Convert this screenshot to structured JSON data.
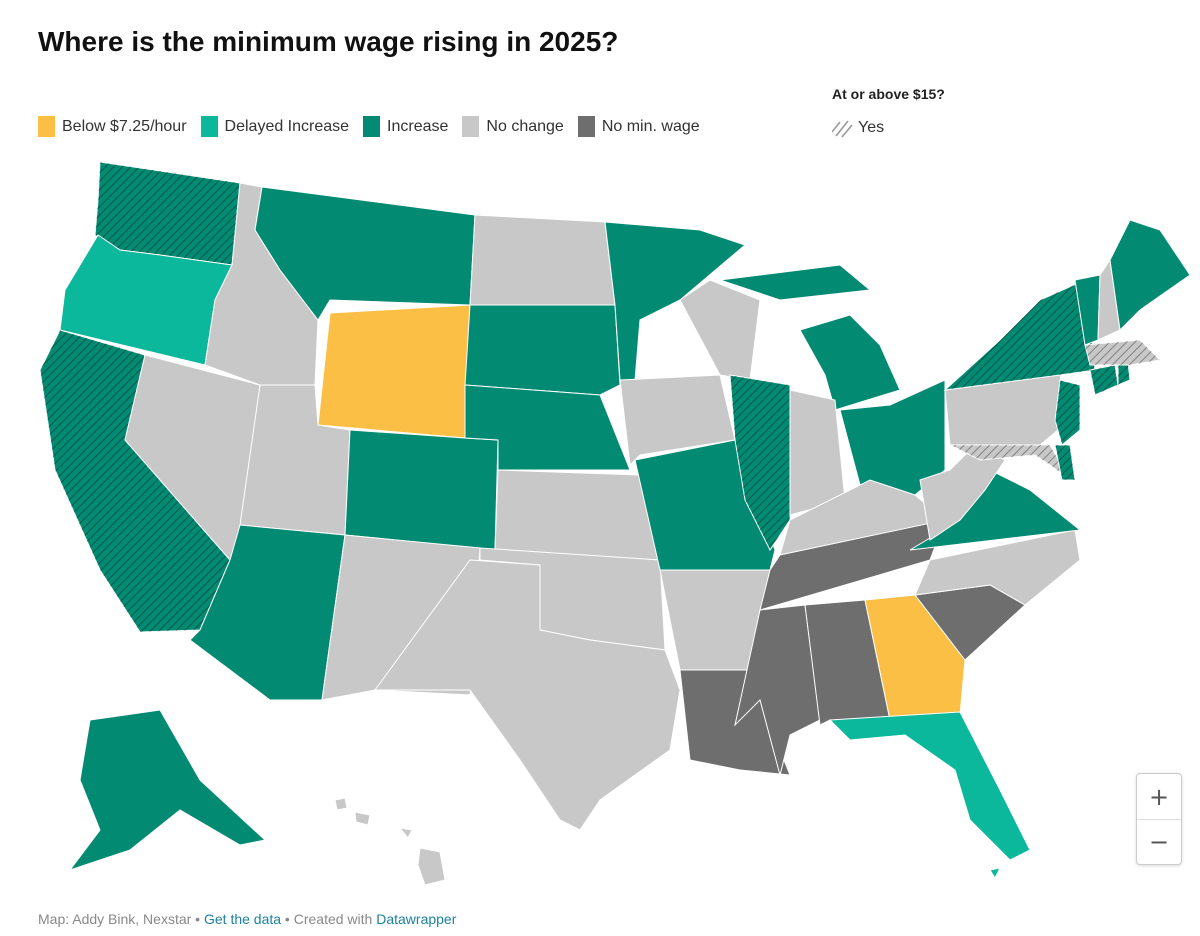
{
  "title": "Where is the minimum wage rising in 2025?",
  "legend": [
    {
      "key": "below",
      "label": "Below $7.25/hour",
      "color": "#fbbf45"
    },
    {
      "key": "delayed",
      "label": "Delayed Increase",
      "color": "#0cb89b"
    },
    {
      "key": "increase",
      "label": "Increase",
      "color": "#038a72"
    },
    {
      "key": "nochange",
      "label": "No change",
      "color": "#c8c8c8"
    },
    {
      "key": "nomin",
      "label": "No min. wage",
      "color": "#6e6e6e"
    }
  ],
  "hatch_legend": {
    "title": "At or above $15?",
    "label": "Yes"
  },
  "states": [
    {
      "id": "WA",
      "cat": "increase",
      "hatched": true
    },
    {
      "id": "OR",
      "cat": "delayed",
      "hatched": false
    },
    {
      "id": "CA",
      "cat": "increase",
      "hatched": true
    },
    {
      "id": "NV",
      "cat": "nochange",
      "hatched": false
    },
    {
      "id": "ID",
      "cat": "nochange",
      "hatched": false
    },
    {
      "id": "MT",
      "cat": "increase",
      "hatched": false
    },
    {
      "id": "WY",
      "cat": "below",
      "hatched": false
    },
    {
      "id": "UT",
      "cat": "nochange",
      "hatched": false
    },
    {
      "id": "CO",
      "cat": "increase",
      "hatched": false
    },
    {
      "id": "AZ",
      "cat": "increase",
      "hatched": false
    },
    {
      "id": "NM",
      "cat": "nochange",
      "hatched": false
    },
    {
      "id": "ND",
      "cat": "nochange",
      "hatched": false
    },
    {
      "id": "SD",
      "cat": "increase",
      "hatched": false
    },
    {
      "id": "NE",
      "cat": "increase",
      "hatched": false
    },
    {
      "id": "KS",
      "cat": "nochange",
      "hatched": false
    },
    {
      "id": "OK",
      "cat": "nochange",
      "hatched": false
    },
    {
      "id": "TX",
      "cat": "nochange",
      "hatched": false
    },
    {
      "id": "MN",
      "cat": "increase",
      "hatched": false
    },
    {
      "id": "IA",
      "cat": "nochange",
      "hatched": false
    },
    {
      "id": "MO",
      "cat": "increase",
      "hatched": false
    },
    {
      "id": "AR",
      "cat": "nochange",
      "hatched": false
    },
    {
      "id": "LA",
      "cat": "nomin",
      "hatched": false
    },
    {
      "id": "WI",
      "cat": "nochange",
      "hatched": false
    },
    {
      "id": "IL",
      "cat": "increase",
      "hatched": true
    },
    {
      "id": "MI",
      "cat": "increase",
      "hatched": false
    },
    {
      "id": "IN",
      "cat": "nochange",
      "hatched": false
    },
    {
      "id": "OH",
      "cat": "increase",
      "hatched": false
    },
    {
      "id": "KY",
      "cat": "nochange",
      "hatched": false
    },
    {
      "id": "TN",
      "cat": "nomin",
      "hatched": false
    },
    {
      "id": "MS",
      "cat": "nomin",
      "hatched": false
    },
    {
      "id": "AL",
      "cat": "nomin",
      "hatched": false
    },
    {
      "id": "GA",
      "cat": "below",
      "hatched": false
    },
    {
      "id": "FL",
      "cat": "delayed",
      "hatched": false
    },
    {
      "id": "SC",
      "cat": "nomin",
      "hatched": false
    },
    {
      "id": "NC",
      "cat": "nochange",
      "hatched": false
    },
    {
      "id": "VA",
      "cat": "increase",
      "hatched": false
    },
    {
      "id": "WV",
      "cat": "nochange",
      "hatched": false
    },
    {
      "id": "PA",
      "cat": "nochange",
      "hatched": false
    },
    {
      "id": "NY",
      "cat": "increase",
      "hatched": true
    },
    {
      "id": "NJ",
      "cat": "increase",
      "hatched": true
    },
    {
      "id": "MD",
      "cat": "nochange",
      "hatched": true
    },
    {
      "id": "DE",
      "cat": "increase",
      "hatched": true
    },
    {
      "id": "CT",
      "cat": "increase",
      "hatched": true
    },
    {
      "id": "RI",
      "cat": "increase",
      "hatched": true
    },
    {
      "id": "MA",
      "cat": "nochange",
      "hatched": true
    },
    {
      "id": "VT",
      "cat": "increase",
      "hatched": false
    },
    {
      "id": "NH",
      "cat": "nochange",
      "hatched": false
    },
    {
      "id": "ME",
      "cat": "increase",
      "hatched": false
    },
    {
      "id": "AK",
      "cat": "increase",
      "hatched": false
    },
    {
      "id": "HI",
      "cat": "nochange",
      "hatched": false
    }
  ],
  "zoom": {
    "in": "+",
    "out": "−"
  },
  "footer": {
    "prefix": "Map: Addy Bink, Nexstar • ",
    "data_link": "Get the data",
    "middle": " • Created with ",
    "tool_link": "Datawrapper"
  }
}
